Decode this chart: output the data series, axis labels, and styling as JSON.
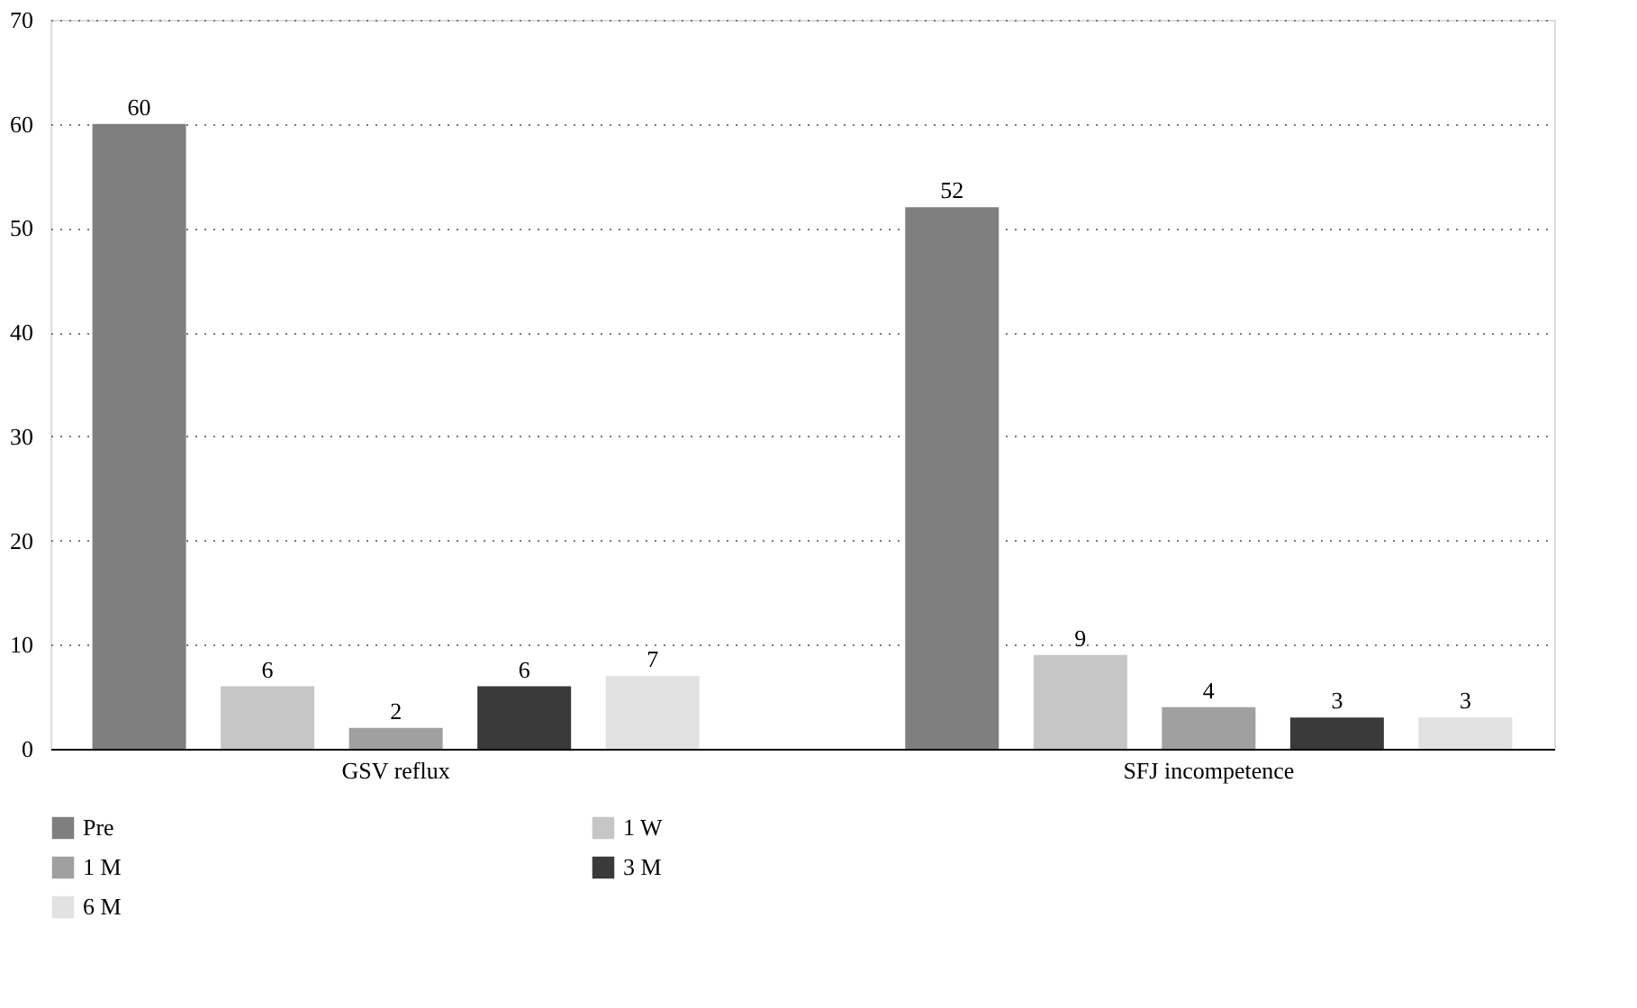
{
  "chart_data": {
    "type": "bar",
    "categories": [
      "GSV reflux",
      "SFJ incompetence"
    ],
    "series": [
      {
        "name": "Pre",
        "color": "#7f7f7f",
        "values": [
          60,
          52
        ]
      },
      {
        "name": "1 W",
        "color": "#c6c6c6",
        "values": [
          6,
          9
        ]
      },
      {
        "name": "1 M",
        "color": "#a0a0a0",
        "values": [
          2,
          4
        ]
      },
      {
        "name": "3 M",
        "color": "#3a3a3a",
        "values": [
          6,
          3
        ]
      },
      {
        "name": "6 M",
        "color": "#e2e2e2",
        "values": [
          7,
          3
        ]
      }
    ],
    "ylim": [
      0,
      70
    ],
    "yticks": [
      0,
      10,
      20,
      30,
      40,
      50,
      60,
      70
    ],
    "grid": "y",
    "data_labels": true,
    "legend": "bottom left"
  }
}
